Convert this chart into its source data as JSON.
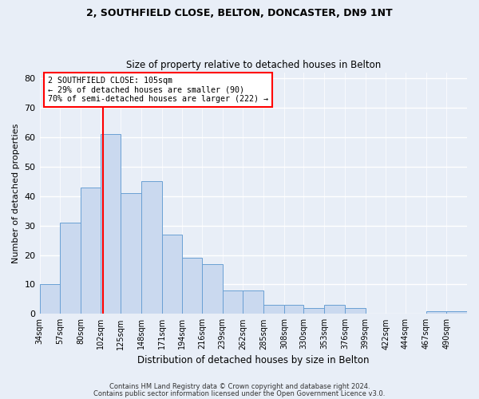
{
  "title1": "2, SOUTHFIELD CLOSE, BELTON, DONCASTER, DN9 1NT",
  "title2": "Size of property relative to detached houses in Belton",
  "xlabel": "Distribution of detached houses by size in Belton",
  "ylabel": "Number of detached properties",
  "bins": [
    34,
    57,
    80,
    102,
    125,
    148,
    171,
    194,
    216,
    239,
    262,
    285,
    308,
    330,
    353,
    376,
    399,
    422,
    444,
    467,
    490,
    513
  ],
  "tick_labels": [
    "34sqm",
    "57sqm",
    "80sqm",
    "102sqm",
    "125sqm",
    "148sqm",
    "171sqm",
    "194sqm",
    "216sqm",
    "239sqm",
    "262sqm",
    "285sqm",
    "308sqm",
    "330sqm",
    "353sqm",
    "376sqm",
    "399sqm",
    "422sqm",
    "444sqm",
    "467sqm",
    "490sqm"
  ],
  "values": [
    10,
    31,
    43,
    61,
    41,
    45,
    27,
    19,
    17,
    8,
    8,
    3,
    3,
    2,
    3,
    2,
    0,
    0,
    0,
    1,
    1
  ],
  "bar_color": "#cad9ef",
  "bar_edge_color": "#6aa0d4",
  "red_line_x": 105,
  "ylim": [
    0,
    82
  ],
  "yticks": [
    0,
    10,
    20,
    30,
    40,
    50,
    60,
    70,
    80
  ],
  "annotation_title": "2 SOUTHFIELD CLOSE: 105sqm",
  "annotation_line2": "← 29% of detached houses are smaller (90)",
  "annotation_line3": "70% of semi-detached houses are larger (222) →",
  "footnote1": "Contains HM Land Registry data © Crown copyright and database right 2024.",
  "footnote2": "Contains public sector information licensed under the Open Government Licence v3.0.",
  "bg_color": "#e8eef7",
  "plot_bg_color": "#e8eef7"
}
